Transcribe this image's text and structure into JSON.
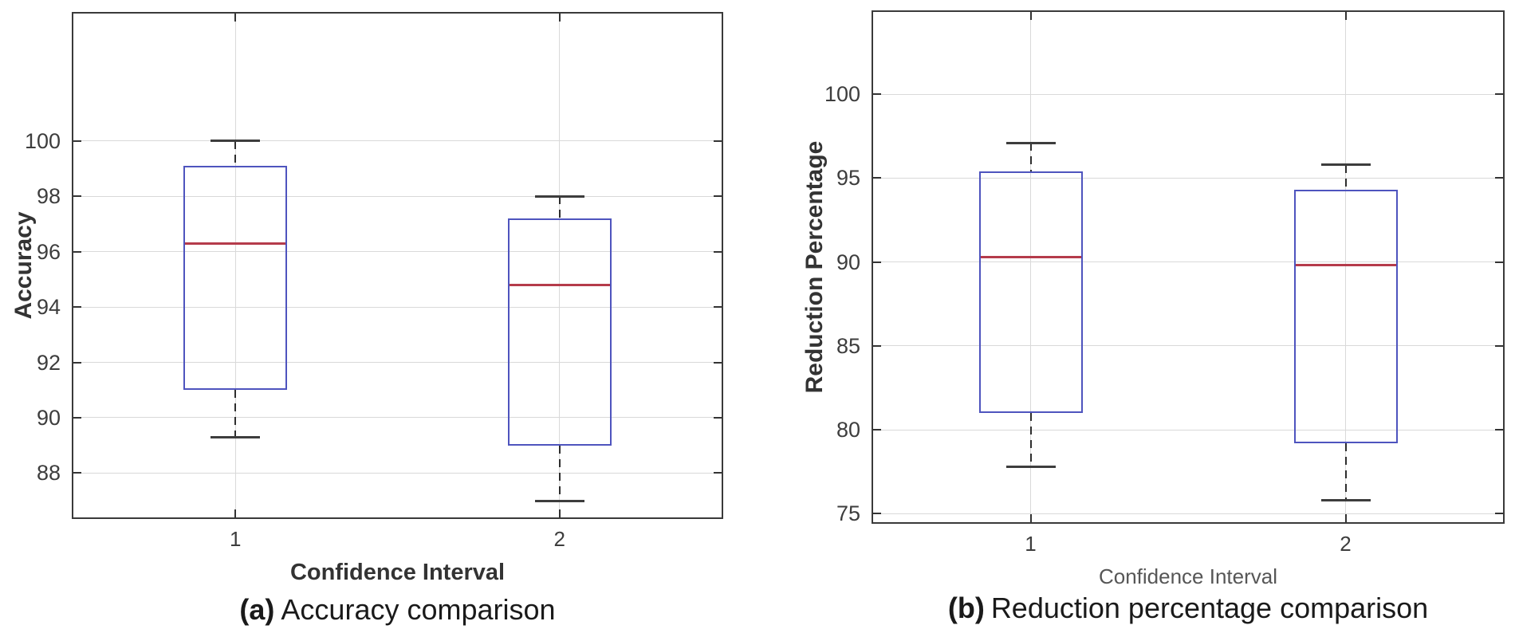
{
  "colors": {
    "box_edge": "#4e54be",
    "median": "#b53b4b",
    "whisker": "#2e2e2e",
    "cap": "#3d3d3d",
    "grid": "#d9d9d9",
    "axis_frame": "#3a3a3a",
    "tick": "#333333",
    "tick_label": "#3d3d3d",
    "axis_label": "#333333",
    "xlabel_b": "#565656",
    "caption": "#1a1a1a",
    "background": "#ffffff"
  },
  "chart_data": [
    {
      "type": "box",
      "panel": "a",
      "caption": {
        "prefix": "(a)",
        "text": "Accuracy comparison"
      },
      "xlabel": "Confidence Interval",
      "ylabel": "Accuracy",
      "categories": [
        "1",
        "2"
      ],
      "yticks": [
        88,
        90,
        92,
        94,
        96,
        98,
        100
      ],
      "ylim": [
        86.4,
        104.6
      ],
      "grid": true,
      "legend": "none",
      "series": [
        {
          "category": "1",
          "whisker_low": 89.3,
          "q1": 91.0,
          "median": 96.3,
          "q3": 99.1,
          "whisker_high": 100.0,
          "outliers": []
        },
        {
          "category": "2",
          "whisker_low": 87.0,
          "q1": 89.0,
          "median": 94.8,
          "q3": 97.2,
          "whisker_high": 98.0,
          "outliers": []
        }
      ]
    },
    {
      "type": "box",
      "panel": "b",
      "caption": {
        "prefix": "(b)",
        "text": "Reduction percentage comparison"
      },
      "xlabel": "Confidence Interval",
      "ylabel": "Reduction Percentage",
      "categories": [
        "1",
        "2"
      ],
      "yticks": [
        75,
        80,
        85,
        90,
        95,
        100
      ],
      "ylim": [
        74.5,
        104.9
      ],
      "grid": true,
      "legend": "none",
      "series": [
        {
          "category": "1",
          "whisker_low": 77.8,
          "q1": 81.0,
          "median": 90.3,
          "q3": 95.4,
          "whisker_high": 97.1,
          "outliers": []
        },
        {
          "category": "2",
          "whisker_low": 75.8,
          "q1": 79.2,
          "median": 89.8,
          "q3": 94.3,
          "whisker_high": 95.8,
          "outliers": []
        }
      ]
    }
  ]
}
